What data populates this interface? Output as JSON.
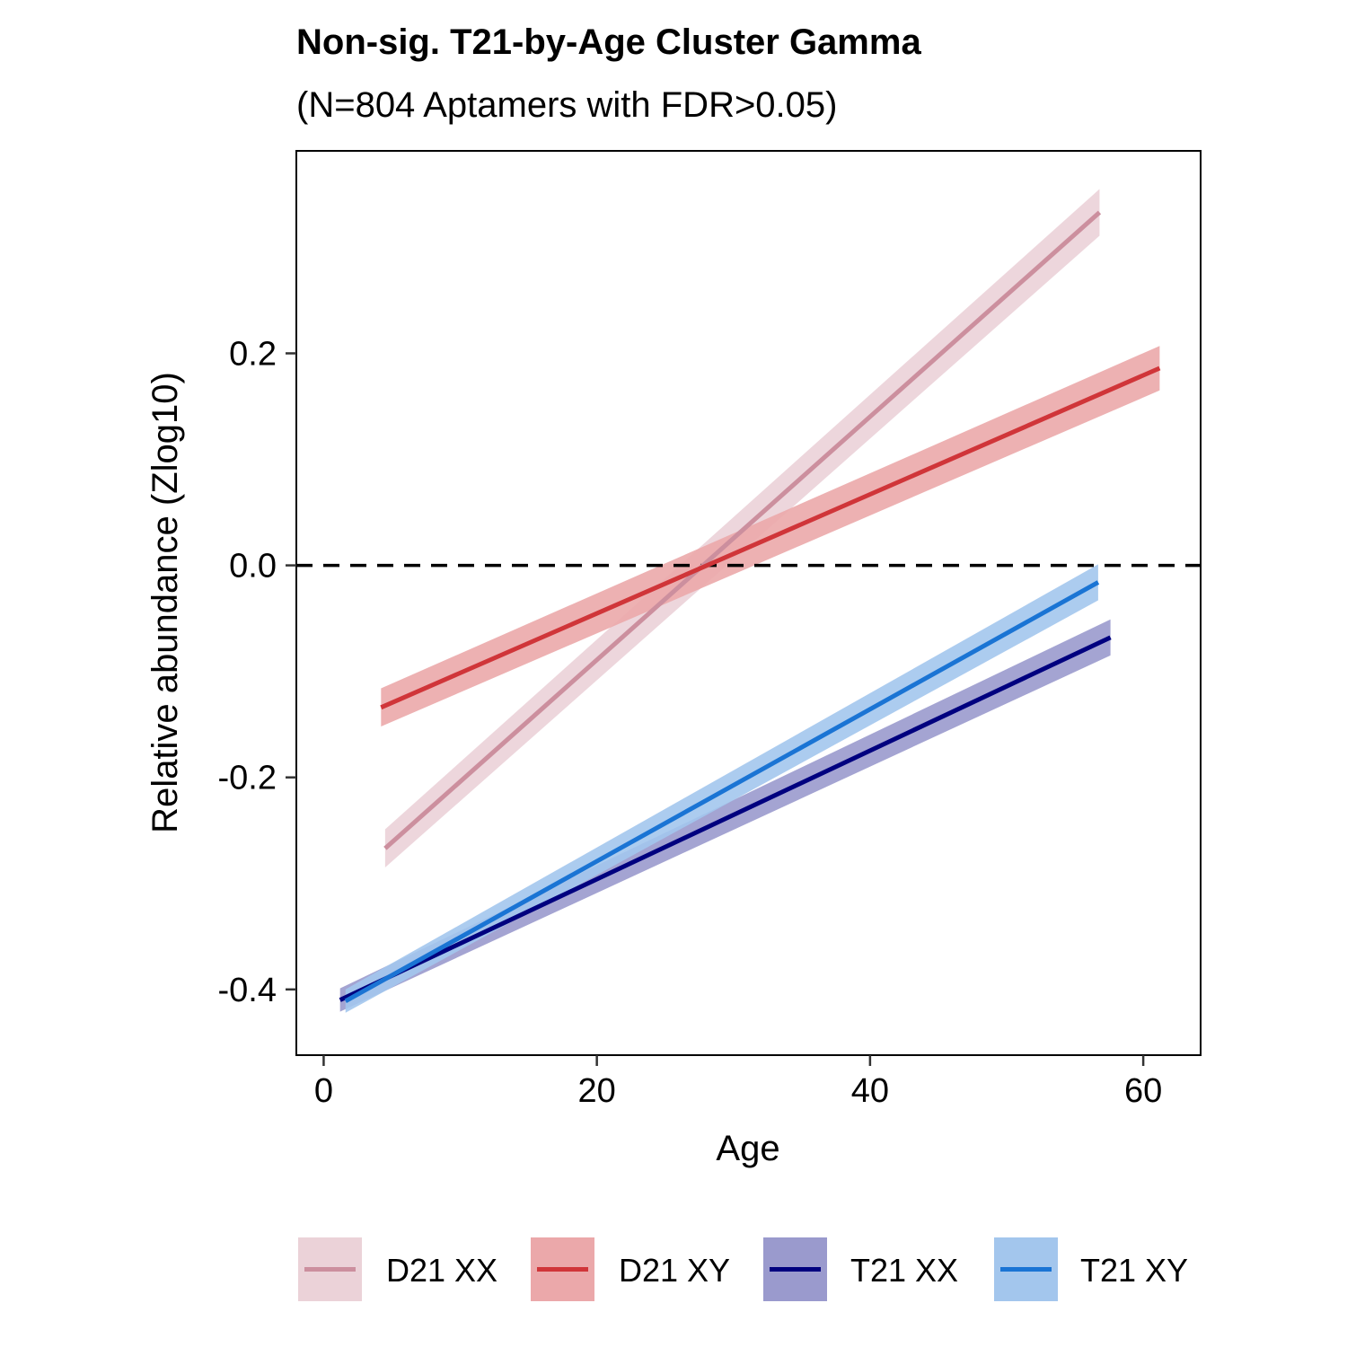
{
  "chart_data": {
    "type": "line",
    "title": "Non-sig. T21-by-Age Cluster Gamma",
    "subtitle": "(N=804 Aptamers with FDR>0.05)",
    "xlabel": "Age",
    "ylabel": "Relative abundance (Zlog10)",
    "xlim": [
      -2,
      64.2
    ],
    "ylim": [
      -0.462,
      0.391
    ],
    "xticks": [
      0,
      20,
      40,
      60
    ],
    "xtick_labels": [
      "0",
      "20",
      "40",
      "60"
    ],
    "yticks": [
      -0.4,
      -0.2,
      0.0,
      0.2
    ],
    "ytick_labels": [
      "-0.4",
      "-0.2",
      "0.0",
      "0.2"
    ],
    "reference_line": {
      "y": 0,
      "style": "dashed",
      "color": "#000000"
    },
    "grid": false,
    "legend_position": "bottom",
    "series": [
      {
        "name": "D21 XX",
        "line_color": "#cc8f9e",
        "ribbon_color": "#ebd2d8",
        "x": [
          4.5,
          56.8
        ],
        "y": [
          -0.267,
          0.333
        ],
        "ci_halfwidth": [
          0.018,
          0.022
        ]
      },
      {
        "name": "D21 XY",
        "line_color": "#d03539",
        "ribbon_color": "#eba8aa",
        "x": [
          4.2,
          61.2
        ],
        "y": [
          -0.134,
          0.186
        ],
        "ci_halfwidth": [
          0.018,
          0.021
        ]
      },
      {
        "name": "T21 XX",
        "line_color": "#00007f",
        "ribbon_color": "#9a9acd",
        "x": [
          1.2,
          57.6
        ],
        "y": [
          -0.41,
          -0.068
        ],
        "ci_halfwidth": [
          0.011,
          0.017
        ]
      },
      {
        "name": "T21 XY",
        "line_color": "#1a74d4",
        "ribbon_color": "#a3c6ed",
        "x": [
          1.6,
          56.7
        ],
        "y": [
          -0.411,
          -0.016
        ],
        "ci_halfwidth": [
          0.011,
          0.017
        ]
      }
    ]
  }
}
